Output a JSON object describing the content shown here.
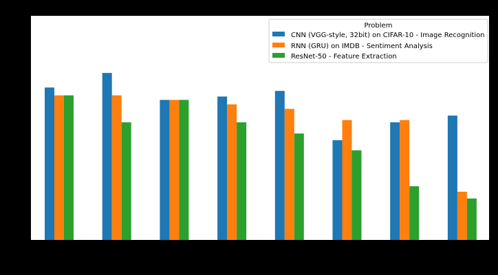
{
  "chart_data": {
    "type": "bar",
    "title": "",
    "xlabel": "",
    "ylabel": "",
    "categories": [
      "",
      "",
      "",
      "",
      "",
      "",
      "",
      ""
    ],
    "ylim": [
      0,
      100
    ],
    "grid": false,
    "legend": {
      "title": "Problem",
      "placement": "top-right"
    },
    "series": [
      {
        "name": "CNN (VGG-style, 32bit) on CIFAR-10 - Image Recognition",
        "color": "#1f77b4",
        "values": [
          68,
          74.5,
          62.5,
          64,
          66.5,
          44.5,
          52.5,
          55.5
        ]
      },
      {
        "name": "RNN (GRU) on IMDB - Sentiment Analysis",
        "color": "#ff7f0e",
        "values": [
          64.5,
          64.5,
          62.5,
          60.5,
          58.5,
          53.5,
          53.5,
          21.5
        ]
      },
      {
        "name": "ResNet-50 - Feature Extraction",
        "color": "#2ca02c",
        "values": [
          64.5,
          52.5,
          62.5,
          52.5,
          47.5,
          40,
          24,
          18.5
        ]
      }
    ]
  }
}
